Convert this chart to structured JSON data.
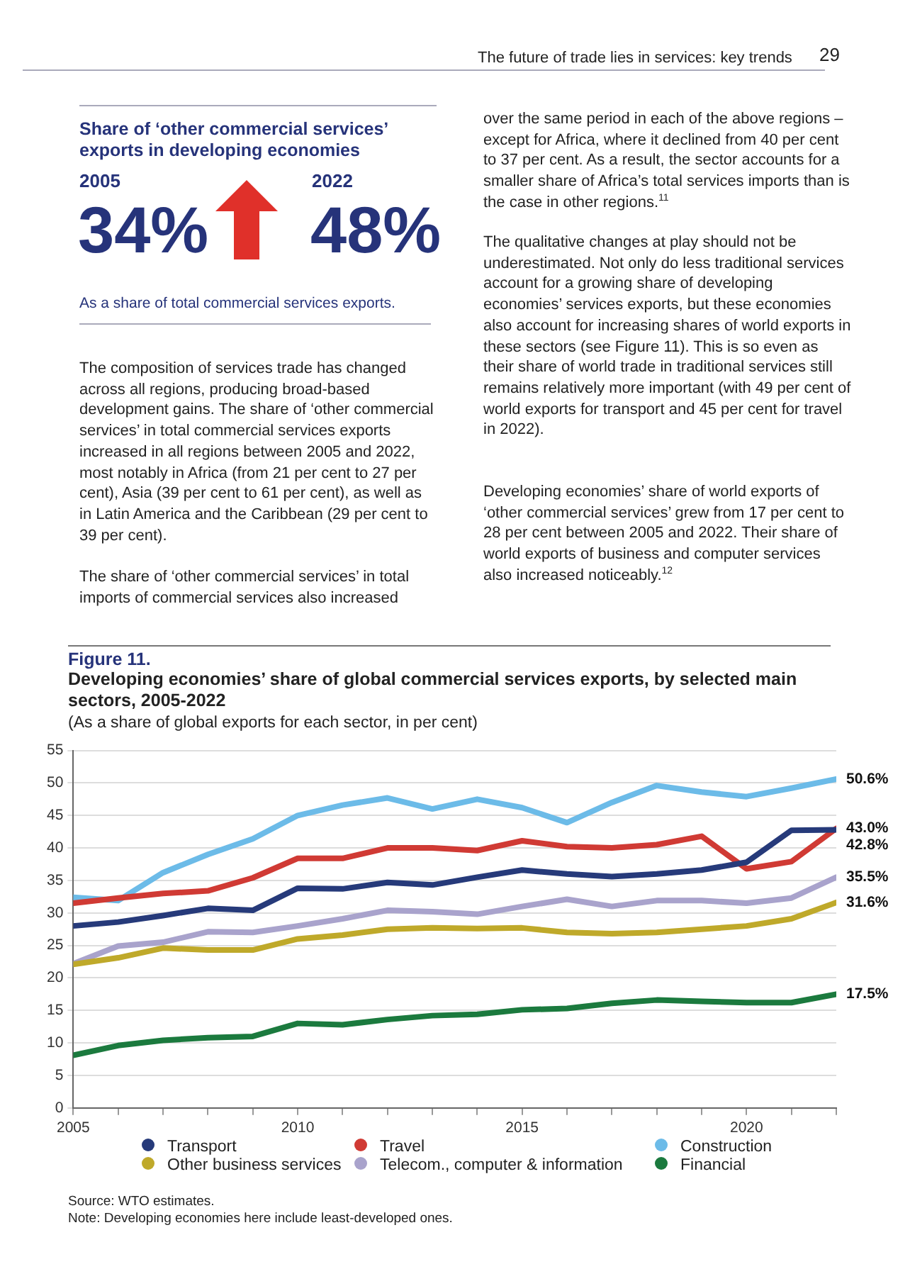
{
  "chart_data": {
    "type": "line",
    "title": "Developing economies’ share of global commercial services exports, by selected main sectors, 2005-2022",
    "subtitle": "(As a share of global exports for each sector, in per cent)",
    "x": [
      2005,
      2006,
      2007,
      2008,
      2009,
      2010,
      2011,
      2012,
      2013,
      2014,
      2015,
      2016,
      2017,
      2018,
      2019,
      2020,
      2021,
      2022
    ],
    "xlim": [
      2005,
      2022
    ],
    "xticks": [
      2005,
      {
        "value": 2006,
        "label": null
      },
      {
        "value": 2007,
        "label": null
      },
      {
        "value": 2008,
        "label": null
      },
      {
        "value": 2009,
        "label": null
      },
      2010,
      {
        "value": 2011,
        "label": null
      },
      {
        "value": 2012,
        "label": null
      },
      {
        "value": 2013,
        "label": null
      },
      {
        "value": 2014,
        "label": null
      },
      2015,
      {
        "value": 2016,
        "label": null
      },
      {
        "value": 2017,
        "label": null
      },
      {
        "value": 2018,
        "label": null
      },
      {
        "value": 2019,
        "label": null
      },
      2020,
      {
        "value": 2021,
        "label": null
      },
      {
        "value": 2022,
        "label": null
      }
    ],
    "ylim": [
      0,
      55
    ],
    "yticks": [
      0,
      5,
      10,
      15,
      20,
      25,
      30,
      35,
      40,
      45,
      50,
      55
    ],
    "grid": "y",
    "legend": "bottom",
    "series": [
      {
        "name": "Transport",
        "color": "#263a7a",
        "values": [
          28,
          28.6,
          29.6,
          30.7,
          30.4,
          33.8,
          33.7,
          34.7,
          34.3,
          35.5,
          36.6,
          36,
          35.6,
          36,
          36.6,
          37.8,
          42.7,
          42.8
        ],
        "value_labels": [
          null,
          null,
          null,
          null,
          null,
          null,
          null,
          null,
          null,
          null,
          null,
          null,
          null,
          null,
          null,
          null,
          null,
          "42.8%"
        ]
      },
      {
        "name": "Travel",
        "color": "#d03a34",
        "values": [
          31.5,
          32.3,
          33,
          33.4,
          35.4,
          38.4,
          38.4,
          40,
          40,
          39.6,
          41.1,
          40.2,
          40,
          40.5,
          41.8,
          36.8,
          37.9,
          43.0
        ],
        "value_labels": [
          null,
          null,
          null,
          null,
          null,
          null,
          null,
          null,
          null,
          null,
          null,
          null,
          null,
          null,
          null,
          null,
          null,
          "43.0%"
        ]
      },
      {
        "name": "Construction",
        "color": "#6cbbe8",
        "values": [
          32.4,
          31.9,
          36.2,
          39,
          41.4,
          45,
          46.6,
          47.7,
          46,
          47.5,
          46.2,
          43.9,
          47,
          49.6,
          48.6,
          47.9,
          49.2,
          50.6
        ],
        "value_labels": [
          null,
          null,
          null,
          null,
          null,
          null,
          null,
          null,
          null,
          null,
          null,
          null,
          null,
          null,
          null,
          null,
          null,
          "50.6%"
        ]
      },
      {
        "name": "Other business services",
        "color": "#bfa92a",
        "values": [
          22.1,
          23.1,
          24.6,
          24.3,
          24.3,
          26,
          26.6,
          27.5,
          27.7,
          27.6,
          27.7,
          27,
          26.8,
          27,
          27.5,
          28,
          29.1,
          31.6
        ],
        "value_labels": [
          null,
          null,
          null,
          null,
          null,
          null,
          null,
          null,
          null,
          null,
          null,
          null,
          null,
          null,
          null,
          null,
          null,
          "31.6%"
        ]
      },
      {
        "name": "Telecom., computer & information",
        "color": "#a9a3cc",
        "values": [
          22.2,
          24.9,
          25.5,
          27.1,
          27,
          28,
          29.1,
          30.4,
          30.2,
          29.8,
          31,
          32.1,
          31,
          31.9,
          31.9,
          31.5,
          32.3,
          35.5
        ],
        "value_labels": [
          null,
          null,
          null,
          null,
          null,
          null,
          null,
          null,
          null,
          null,
          null,
          null,
          null,
          null,
          null,
          null,
          null,
          "35.5%"
        ]
      },
      {
        "name": "Financial",
        "color": "#1b7a3e",
        "values": [
          8.1,
          9.6,
          10.4,
          10.8,
          11,
          13,
          12.8,
          13.6,
          14.2,
          14.4,
          15.1,
          15.3,
          16.1,
          16.6,
          16.4,
          16.2,
          16.2,
          17.5
        ],
        "value_labels": [
          null,
          null,
          null,
          null,
          null,
          null,
          null,
          null,
          null,
          null,
          null,
          null,
          null,
          null,
          null,
          null,
          null,
          "17.5%"
        ]
      }
    ],
    "annotations": [
      "The future of trade lies in services: key trends",
      "29",
      "Share of ‘other commercial services’ exports in developing economies",
      "2005",
      "34%",
      "2022",
      "48%",
      "As a share of total commercial services exports.",
      "The composition of services trade has changed across all regions, producing broad-based development gains. The share of ‘other commercial services’ in total commercial services exports increased in all regions between 2005 and 2022, most notably in Africa (from 21 per cent to 27 per cent), Asia (39 per cent to 61 per cent), as well as in Latin America and the Caribbean (29 per cent to 39 per cent).",
      "The share of ‘other commercial services’ in total imports of commercial services also increased",
      "over the same period in each of the above regions – except for Africa, where it declined from 40 per cent to 37 per cent. As a result, the sector accounts for a smaller share of Africa’s total services imports than is the case in other regions.$^{11}$",
      "The qualitative changes at play should not be underestimated. Not only do less traditional services account for a growing share of developing economies’ services exports, but these economies also account for increasing shares of world exports in these sectors (see Figure 11). This is so even as their share of world trade in traditional services still remains relatively more important (with 49 per cent of world exports for transport and 45 per cent for travel in 2022).",
      "Developing economies’ share of world exports of ‘other commercial services’ grew from 17 per cent to 28 per cent between 2005 and 2022. Their share of world exports of business and computer services also increased noticeably.$^{12}$",
      "Figure 11.",
      "Source: WTO estimates.",
      "Note: Developing economies here include least-developed ones."
    ]
  }
}
